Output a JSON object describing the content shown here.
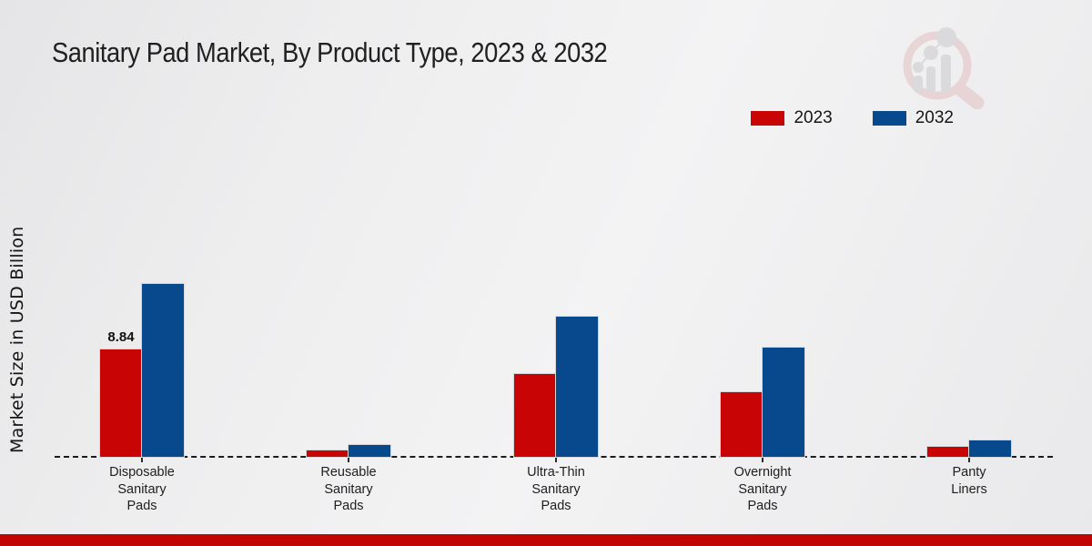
{
  "title": "Sanitary Pad Market, By Product Type, 2023 & 2032",
  "colors": {
    "series_2023": "#c80404",
    "series_2032": "#07498c",
    "baseline": "#1c1c1c",
    "footer_stripe": "#c10505",
    "watermark_ring": "#e3bfc1",
    "watermark_gray": "#c9c9cd"
  },
  "watermark_icon": "magnifier-bar-chart-logo",
  "chart_data": {
    "type": "bar",
    "title": "Sanitary Pad Market, By Product Type, 2023 & 2032",
    "xlabel": "",
    "ylabel": "Market Size in USD Billion",
    "ylim": [
      0,
      16
    ],
    "grid": false,
    "legend_position": "top-right",
    "categories": [
      "Disposable Sanitary Pads",
      "Reusable Sanitary Pads",
      "Ultra-Thin Sanitary Pads",
      "Overnight Sanitary Pads",
      "Panty Liners"
    ],
    "category_lines": [
      [
        "Disposable",
        "Sanitary",
        "Pads"
      ],
      [
        "Reusable",
        "Sanitary",
        "Pads"
      ],
      [
        "Ultra-Thin",
        "Sanitary",
        "Pads"
      ],
      [
        "Overnight",
        "Sanitary",
        "Pads"
      ],
      [
        "Panty",
        "Liners"
      ]
    ],
    "series": [
      {
        "name": "2023",
        "color": "#c80404",
        "values": [
          8.84,
          0.55,
          6.8,
          5.3,
          0.8
        ]
      },
      {
        "name": "2032",
        "color": "#07498c",
        "values": [
          14.2,
          0.95,
          11.5,
          9.0,
          1.35
        ]
      }
    ],
    "annotations": [
      {
        "series": "2023",
        "category_index": 0,
        "text": "8.84"
      }
    ]
  }
}
